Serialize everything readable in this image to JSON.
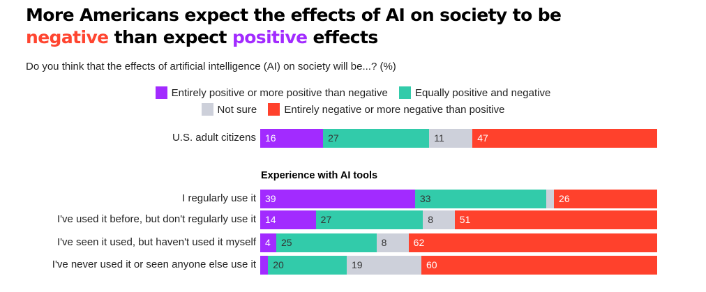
{
  "title": {
    "line1": "More Americans expect the effects of AI on society to be",
    "neg_word": "negative",
    "mid": " than expect ",
    "pos_word": "positive",
    "end": " effects"
  },
  "subtitle": "Do you think that the effects of artificial intelligence (AI) on society will be...? (%)",
  "colors": {
    "positive": "#a22bff",
    "equal": "#32cbaa",
    "not_sure": "#cdd0da",
    "negative": "#ff412c"
  },
  "chart_data": {
    "type": "bar",
    "orientation": "horizontal-stacked-100",
    "title": "More Americans expect the effects of AI on society to be negative than expect positive effects",
    "subtitle": "Do you think that the effects of artificial intelligence (AI) on society will be...? (%)",
    "legend": [
      {
        "key": "positive",
        "label": "Entirely positive or more positive than negative"
      },
      {
        "key": "equal",
        "label": "Equally positive and negative"
      },
      {
        "key": "not_sure",
        "label": "Not sure"
      },
      {
        "key": "negative",
        "label": "Entirely negative or more negative than positive"
      }
    ],
    "legend_position": "top-center",
    "group_heading": "Experience with AI tools",
    "categories": [
      "U.S. adult citizens",
      "I regularly use it",
      "I've used it before, but don't regularly use it",
      "I've seen it used, but haven't used it myself",
      "I've never used it or seen anyone else use it"
    ],
    "series": [
      {
        "name": "Entirely positive or more positive than negative",
        "key": "positive",
        "values": [
          16,
          39,
          14,
          4,
          2
        ],
        "labels": [
          "16",
          "39",
          "14",
          "4",
          ""
        ]
      },
      {
        "name": "Equally positive and negative",
        "key": "equal",
        "values": [
          27,
          33,
          27,
          25,
          20
        ],
        "labels": [
          "27",
          "33",
          "27",
          "25",
          "20"
        ]
      },
      {
        "name": "Not sure",
        "key": "not_sure",
        "values": [
          11,
          2,
          8,
          8,
          19
        ],
        "labels": [
          "11",
          "",
          "8",
          "8",
          "19"
        ]
      },
      {
        "name": "Entirely negative or more negative than positive",
        "key": "negative",
        "values": [
          47,
          26,
          51,
          62,
          60
        ],
        "labels": [
          "47",
          "26",
          "51",
          "62",
          "60"
        ]
      }
    ],
    "xlim": [
      0,
      100
    ],
    "grid": false
  }
}
